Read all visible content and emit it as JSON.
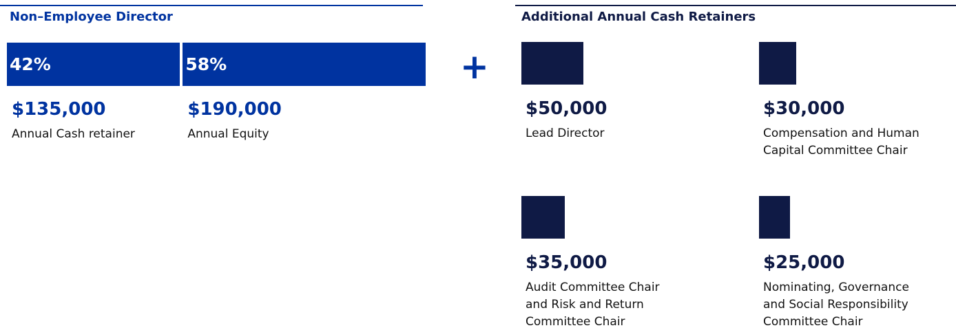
{
  "chart_data": {
    "type": "compensation",
    "left": {
      "title": "Non–Employee Director",
      "color": "#0033a0",
      "segments": [
        {
          "value": 42,
          "label": "42%",
          "amount": 135000,
          "amount_label": "$135,000",
          "name": "Annual Cash retainer"
        },
        {
          "value": 58,
          "label": "58%",
          "amount": 190000,
          "amount_label": "$190,000",
          "name": "Annual Equity"
        }
      ]
    },
    "plus": "+",
    "right": {
      "title": "Additional Annual Cash Retainers",
      "color": "#0f1a45",
      "items": [
        {
          "amount": 50000,
          "amount_label": "$50,000",
          "lines": [
            "Lead Director"
          ]
        },
        {
          "amount": 30000,
          "amount_label": "$30,000",
          "lines": [
            "Compensation and Human",
            "Capital Committee Chair"
          ]
        },
        {
          "amount": 35000,
          "amount_label": "$35,000",
          "lines": [
            "Audit Committee Chair",
            "and Risk and Return",
            "Committee Chair"
          ]
        },
        {
          "amount": 25000,
          "amount_label": "$25,000",
          "lines": [
            "Nominating, Governance",
            "and Social Responsibility",
            "Committee Chair"
          ]
        }
      ]
    }
  }
}
